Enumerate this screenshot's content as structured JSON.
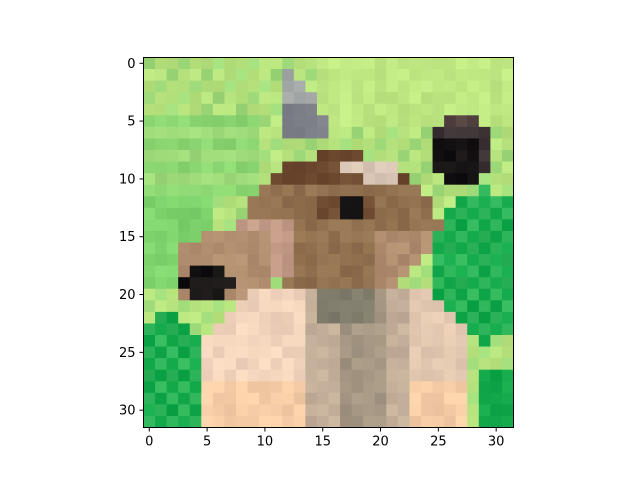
{
  "chart_data": {
    "type": "heatmap",
    "subtype": "rgb-image",
    "title": "",
    "xlabel": "",
    "ylabel": "",
    "grid": false,
    "legend": "none",
    "image_size": [
      32,
      32
    ],
    "xlim": [
      -0.5,
      31.5
    ],
    "ylim": [
      31.5,
      -0.5
    ],
    "x_ticks": [
      0,
      5,
      10,
      15,
      20,
      25,
      30
    ],
    "x_tick_labels": [
      "0",
      "5",
      "10",
      "15",
      "20",
      "25",
      "30"
    ],
    "y_ticks": [
      0,
      5,
      10,
      15,
      20,
      25,
      30
    ],
    "y_tick_labels": [
      "0",
      "5",
      "10",
      "15",
      "20",
      "25",
      "30"
    ],
    "palette": {
      "grass_light": "#b7e37e",
      "grass_mid": "#9fda7a",
      "grass_bright": "#7fd36d",
      "grass_deep": "#2fb55a",
      "grass_vivid": "#12a84a",
      "ear_grey": "#7d8088",
      "ear_dark": "#3e3537",
      "eye_black": "#161314",
      "fur_dark": "#6e4a31",
      "fur_brown": "#91714f",
      "fur_tan": "#b08d6e",
      "fur_pink": "#c39a86",
      "fur_light": "#d9c6b5",
      "chest_cream": "#f3d5bd",
      "chest_peach": "#f6cda6",
      "neck_grey": "#a49682",
      "neck_shadow": "#7e7a6a"
    },
    "description_regions": [
      {
        "name": "background-grass",
        "rows": [
          0,
          31
        ],
        "cols": [
          0,
          31
        ],
        "color": "grass_light"
      },
      {
        "name": "left-ear",
        "rows": [
          1,
          6
        ],
        "cols": [
          11,
          15
        ],
        "color": "ear_grey"
      },
      {
        "name": "right-ear",
        "rows": [
          4,
          10
        ],
        "cols": [
          24,
          30
        ],
        "color": "ear_dark"
      },
      {
        "name": "head",
        "rows": [
          8,
          20
        ],
        "cols": [
          8,
          25
        ],
        "color": "fur_brown"
      },
      {
        "name": "nose",
        "rows": [
          17,
          20
        ],
        "cols": [
          3,
          7
        ],
        "color": "eye_black"
      },
      {
        "name": "eye",
        "rows": [
          12,
          13
        ],
        "cols": [
          15,
          19
        ],
        "color": "eye_black"
      },
      {
        "name": "neck",
        "rows": [
          20,
          31
        ],
        "cols": [
          5,
          28
        ],
        "color": "chest_cream"
      },
      {
        "name": "right-bush",
        "rows": [
          12,
          23
        ],
        "cols": [
          25,
          31
        ],
        "color": "grass_vivid"
      },
      {
        "name": "left-bush",
        "rows": [
          22,
          31
        ],
        "cols": [
          0,
          4
        ],
        "color": "grass_deep"
      }
    ]
  }
}
